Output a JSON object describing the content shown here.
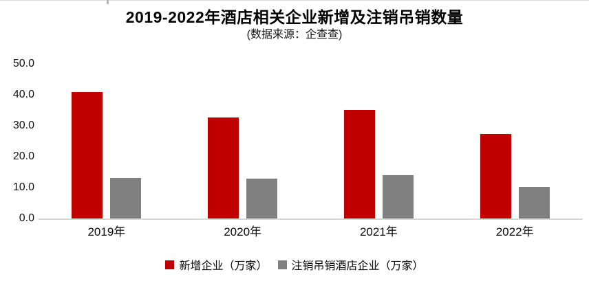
{
  "title": "2019-2022年酒店相关企业新增及注销吊销数量",
  "subtitle": "(数据来源：企查查)",
  "colors": {
    "new_series_red": "#c00000",
    "deregistered_series_gray": "#808080",
    "axis_line": "#d9d9d9"
  },
  "y_axis": {
    "ticks": [
      "50.0",
      "40.0",
      "30.0",
      "20.0",
      "10.0",
      "0.0"
    ]
  },
  "legend": {
    "items": [
      "新增企业（万家）",
      "注销吊销酒店企业（万家）"
    ]
  },
  "chart_data": {
    "type": "bar",
    "title": "2019-2022年酒店相关企业新增及注销吊销数量",
    "subtitle": "(数据来源：企查查)",
    "categories": [
      "2019年",
      "2020年",
      "2021年",
      "2022年"
    ],
    "series": [
      {
        "name": "新增企业（万家）",
        "color": "#c00000",
        "values": [
          41.0,
          32.7,
          35.2,
          27.3
        ]
      },
      {
        "name": "注销吊销酒店企业（万家）",
        "color": "#808080",
        "values": [
          13.1,
          12.9,
          14.0,
          10.3
        ]
      }
    ],
    "xlabel": "",
    "ylabel": "",
    "ylim": [
      0,
      50
    ],
    "y_tick_step": 10,
    "grid": false,
    "legend_position": "bottom"
  }
}
